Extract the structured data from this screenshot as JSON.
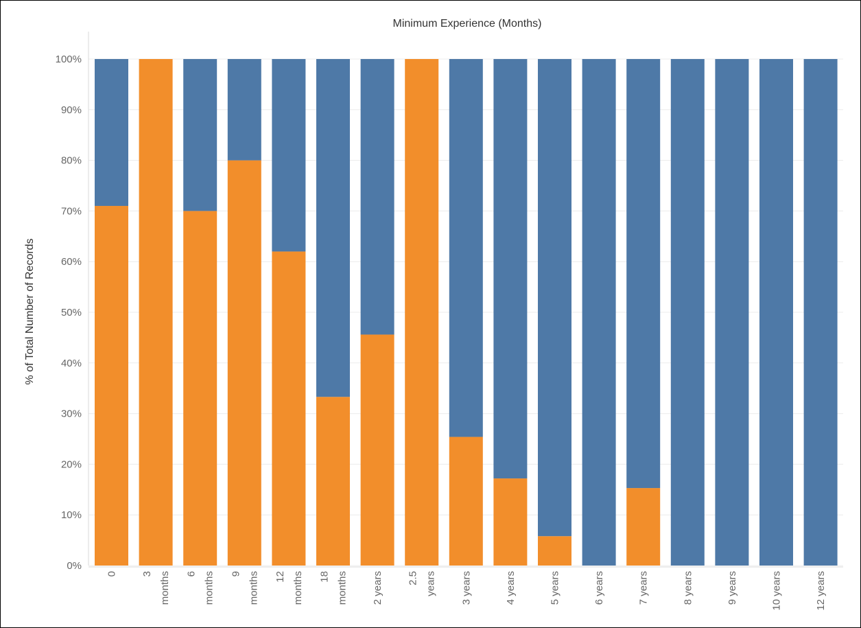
{
  "chart_data": {
    "type": "bar",
    "stacked": "percent",
    "title": "Minimum Experience (Months)",
    "ylabel": "% of Total Number of Records",
    "ylim": [
      0,
      100
    ],
    "yticks": [
      "0%",
      "10%",
      "20%",
      "30%",
      "40%",
      "50%",
      "60%",
      "70%",
      "80%",
      "90%",
      "100%"
    ],
    "grid": true,
    "legend": "none",
    "categories": [
      [
        "0"
      ],
      [
        "3",
        "months"
      ],
      [
        "6",
        "months"
      ],
      [
        "9",
        "months"
      ],
      [
        "12",
        "months"
      ],
      [
        "18",
        "months"
      ],
      [
        "2 years"
      ],
      [
        "2.5",
        "years"
      ],
      [
        "3 years"
      ],
      [
        "4 years"
      ],
      [
        "5 years"
      ],
      [
        "6 years"
      ],
      [
        "7 years"
      ],
      [
        "8 years"
      ],
      [
        "9 years"
      ],
      [
        "10 years"
      ],
      [
        "12 years"
      ]
    ],
    "series": [
      {
        "color": "#f28e2b",
        "values": [
          71,
          100,
          70,
          80,
          62,
          33.3,
          45.6,
          100,
          25.4,
          17.2,
          5.8,
          0,
          15.3,
          0,
          0,
          0,
          0
        ]
      },
      {
        "color": "#4e79a7",
        "values": [
          29,
          0,
          30,
          20,
          38,
          66.7,
          54.4,
          0,
          74.6,
          82.8,
          94.2,
          100,
          84.7,
          100,
          100,
          100,
          100
        ]
      }
    ]
  }
}
